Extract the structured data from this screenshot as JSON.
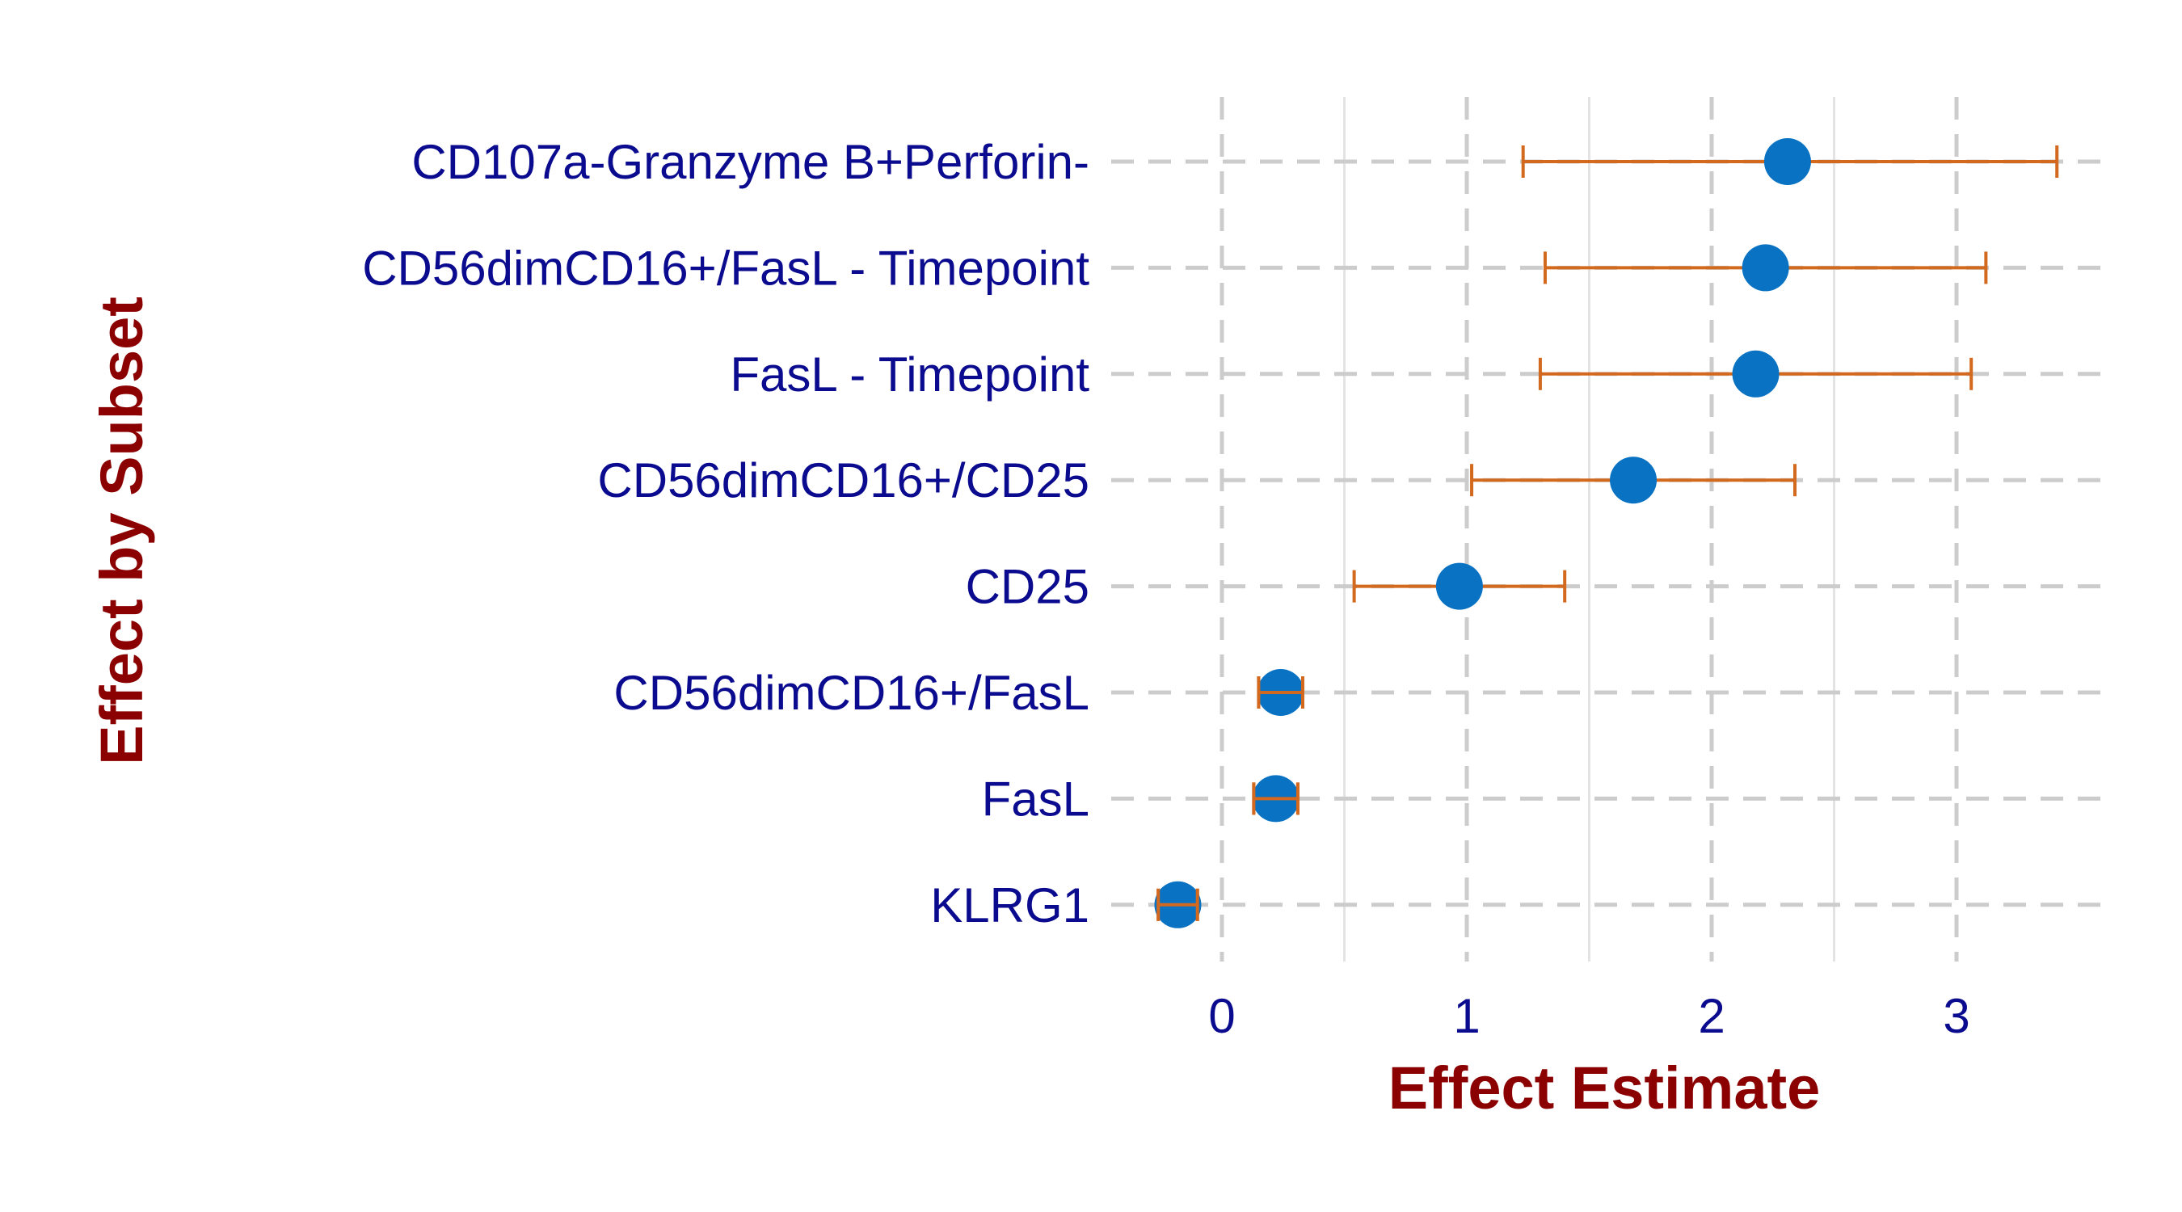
{
  "chart_data": {
    "type": "scatter",
    "subtype": "forest-plot-with-error-bars",
    "title": "",
    "xlabel": "Effect Estimate",
    "ylabel": "Effect by Subset",
    "xlim": [
      -0.2,
      3.5
    ],
    "x_ticks": [
      0,
      1,
      2,
      3
    ],
    "x_tick_labels": [
      "0",
      "1",
      "2",
      "3"
    ],
    "grid": true,
    "legend": "none",
    "categories": [
      "CD107a-Granzyme B+Perforin-",
      "CD56dimCD16+/FasL - Timepoint",
      "FasL - Timepoint",
      "CD56dimCD16+/CD25",
      "CD25",
      "CD56dimCD16+/FasL",
      "FasL",
      "KLRG1"
    ],
    "series": [
      {
        "estimate": [
          2.31,
          2.22,
          2.18,
          1.68,
          0.97,
          0.24,
          0.22,
          -0.18
        ],
        "lower": [
          1.23,
          1.32,
          1.3,
          1.02,
          0.54,
          0.15,
          0.13,
          -0.26
        ],
        "upper": [
          3.41,
          3.12,
          3.06,
          2.34,
          1.4,
          0.33,
          0.31,
          -0.1
        ]
      }
    ],
    "colors": {
      "point": "#0a72c2",
      "error_bar": "#d2691e",
      "grid": "#cccccc",
      "grid_minor": "#e3e3e3",
      "tick_label": "#0b0b8f",
      "axis_title": "#8b0000"
    }
  }
}
